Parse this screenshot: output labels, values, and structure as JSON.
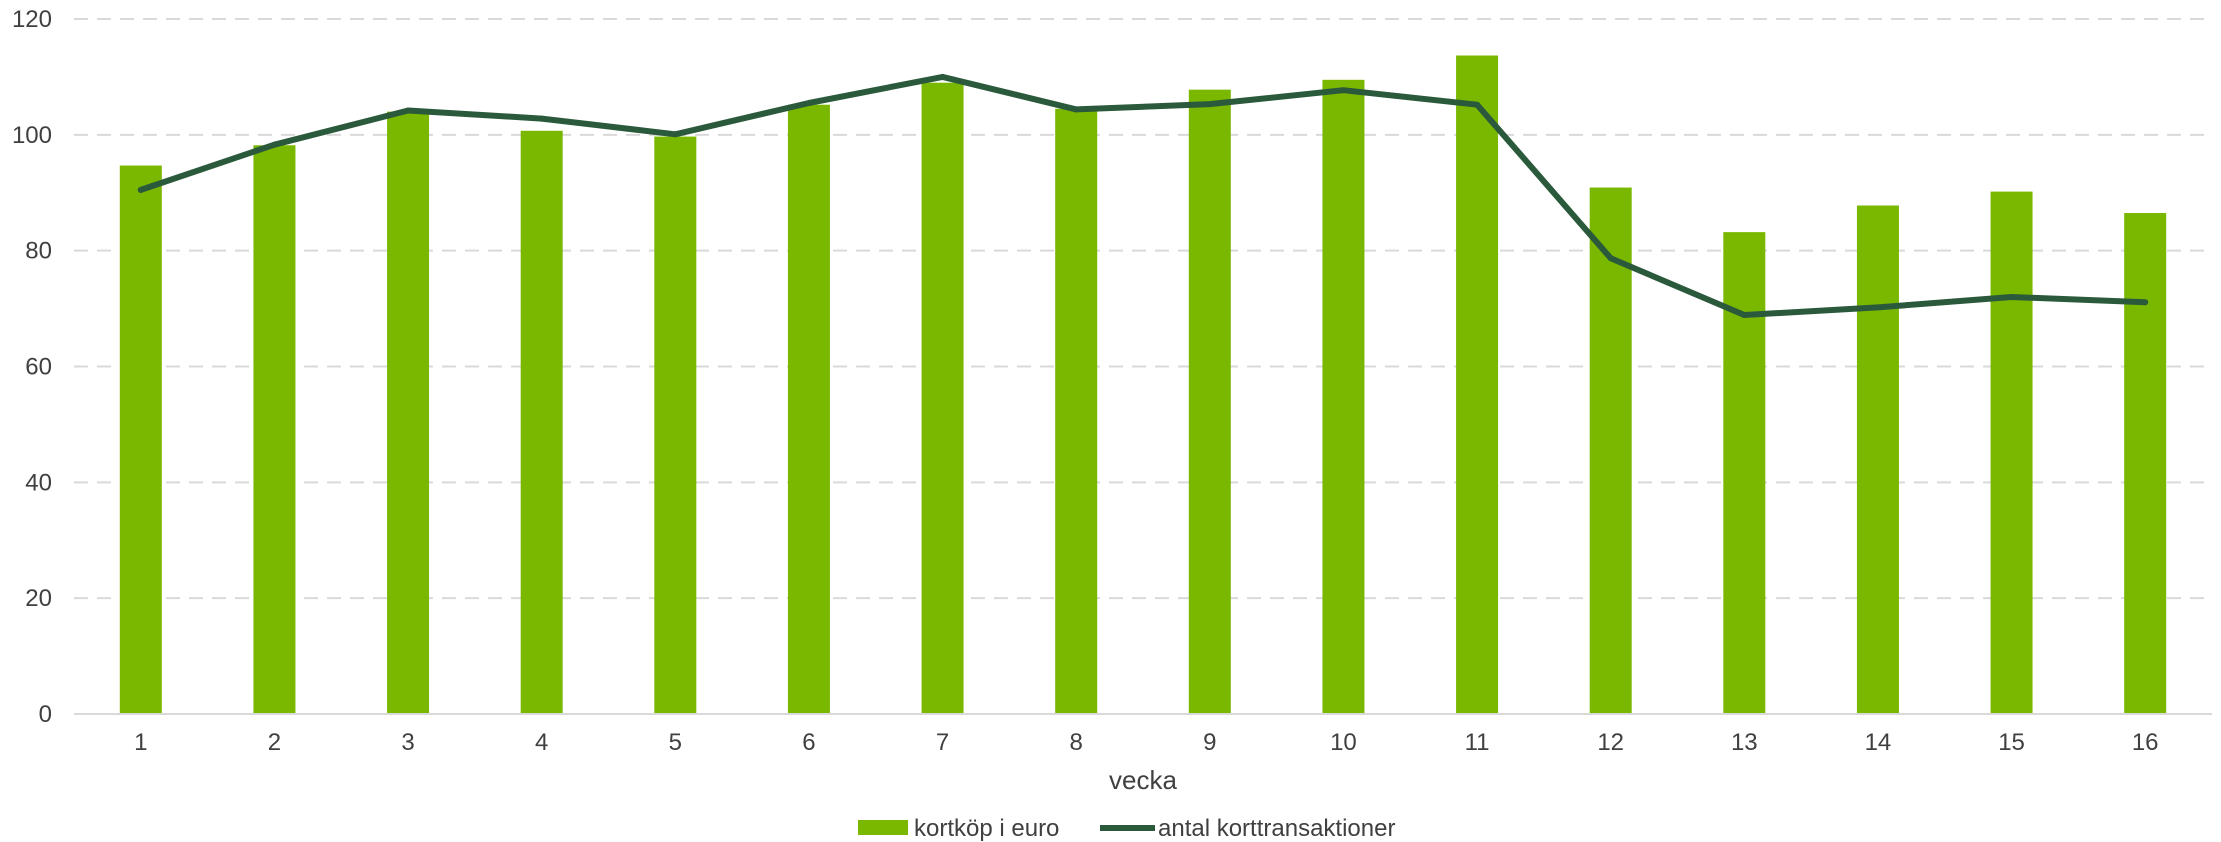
{
  "chart_data": {
    "type": "bar",
    "title": "",
    "xlabel": "vecka",
    "ylabel": "",
    "ylim": [
      0,
      120
    ],
    "yticks": [
      0,
      20,
      40,
      60,
      80,
      100,
      120
    ],
    "grid": true,
    "legend_position": "bottom",
    "categories": [
      "1",
      "2",
      "3",
      "4",
      "5",
      "6",
      "7",
      "8",
      "9",
      "10",
      "11",
      "12",
      "13",
      "14",
      "15",
      "16"
    ],
    "series": [
      {
        "name": "kortköp i euro",
        "kind": "bar",
        "color": "#7ab800",
        "values": [
          94.7,
          98.2,
          104.0,
          100.7,
          99.7,
          105.2,
          109.0,
          104.5,
          107.8,
          109.5,
          113.7,
          90.9,
          83.2,
          87.8,
          90.2,
          86.5
        ]
      },
      {
        "name": "antal korttransaktioner",
        "kind": "line",
        "color": "#2a5a3b",
        "values": [
          90.5,
          98.3,
          104.2,
          102.8,
          100.1,
          105.5,
          110.0,
          104.4,
          105.3,
          107.7,
          105.2,
          78.7,
          68.9,
          70.2,
          72.0,
          71.1
        ]
      }
    ]
  }
}
